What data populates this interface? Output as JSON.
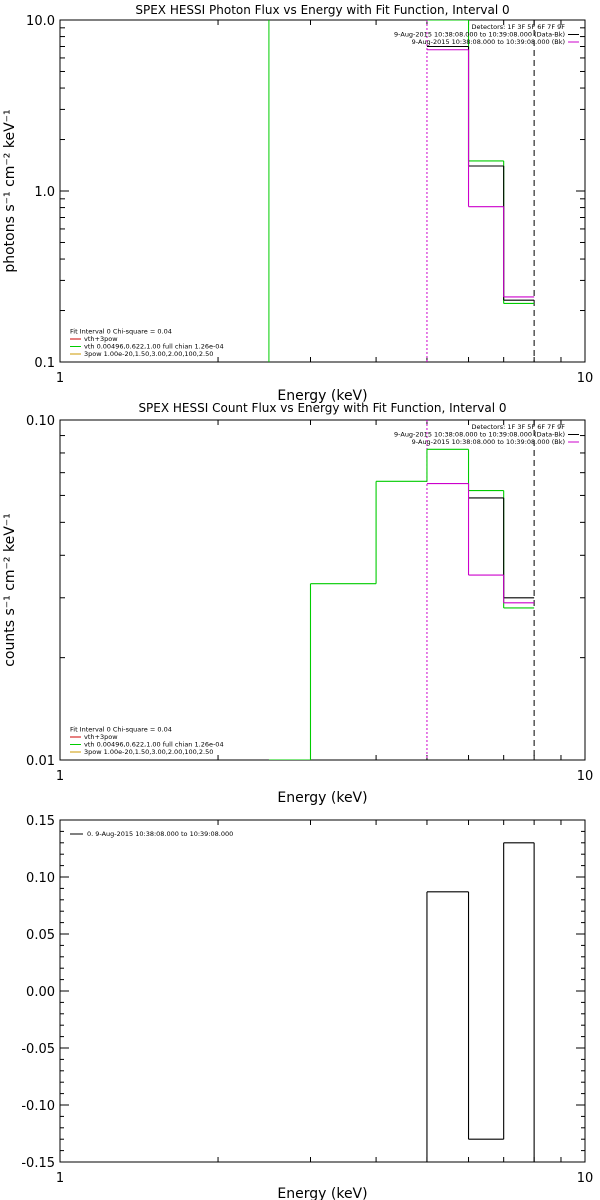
{
  "chart_data": [
    {
      "type": "line",
      "title": "SPEX HESSI Photon Flux vs Energy with Fit Function, Interval 0",
      "xlabel": "Energy (keV)",
      "ylabel": "photons s⁻¹ cm⁻² keV⁻¹",
      "xscale": "log",
      "yscale": "log",
      "xlim": [
        1,
        10
      ],
      "ylim": [
        0.1,
        10
      ],
      "x_tick_labels": [
        "1",
        "10"
      ],
      "y_ticks": [
        0.1,
        1.0,
        10.0
      ],
      "y_tick_labels": [
        "0.1",
        "1.0",
        "10.0"
      ],
      "legend_top_right": [
        {
          "text": "Detectors: 1F 3F 5F 6F 7F 9F",
          "color": ""
        },
        {
          "text": "9-Aug-2015 10:38:08.000 to 10:39:08.000 (Data-Bk)",
          "color": "#000000"
        },
        {
          "text": "9-Aug-2015 10:38:08.000 to 10:39:08.000 (Bk)",
          "color": "#cc00cc"
        }
      ],
      "legend_bottom_left": [
        {
          "text": "Fit Interval 0   Chi-square = 0.04",
          "color": ""
        },
        {
          "text": "vth+3pow",
          "color": "#cc0000"
        },
        {
          "text": "vth 0.00496,0.622,1.00  full chian 1.26e-04",
          "color": "#00cc00"
        },
        {
          "text": "3pow 1.00e-20,1.50,3.00,2.00,100,2.50",
          "color": "#cc9900"
        }
      ],
      "vlines": [
        {
          "x": 2.5,
          "color": "#00cc00",
          "style": "solid"
        },
        {
          "x": 5.0,
          "color": "#cc00cc",
          "style": "dotted"
        },
        {
          "x": 8.0,
          "color": "#000000",
          "style": "dashed"
        }
      ],
      "series": [
        {
          "color": "#00cc00",
          "bins": [
            [
              5.0,
              6.0,
              10.0
            ],
            [
              6.0,
              7.0,
              1.5
            ],
            [
              7.0,
              8.0,
              0.22
            ]
          ]
        },
        {
          "color": "#000000",
          "bins": [
            [
              5.0,
              6.0,
              7.0
            ],
            [
              6.0,
              7.0,
              1.4
            ],
            [
              7.0,
              8.0,
              0.23
            ]
          ]
        },
        {
          "color": "#cc00cc",
          "bins": [
            [
              5.0,
              6.0,
              6.7
            ],
            [
              6.0,
              7.0,
              0.81
            ],
            [
              7.0,
              8.0,
              0.24
            ]
          ]
        }
      ]
    },
    {
      "type": "line",
      "title": "SPEX HESSI Count Flux vs Energy with Fit Function, Interval 0",
      "xlabel": "Energy (keV)",
      "ylabel": "counts s⁻¹ cm⁻² keV⁻¹",
      "xscale": "log",
      "yscale": "log",
      "xlim": [
        1,
        10
      ],
      "ylim": [
        0.01,
        0.1
      ],
      "x_tick_labels": [
        "1",
        "10"
      ],
      "y_ticks": [
        0.01,
        0.1
      ],
      "y_tick_labels": [
        "0.01",
        "0.10"
      ],
      "legend_top_right": [
        {
          "text": "Detectors: 1F 3F 5F 6F 7F 9F",
          "color": ""
        },
        {
          "text": "9-Aug-2015 10:38:08.000 to 10:39:08.000 (Data-Bk)",
          "color": "#000000"
        },
        {
          "text": "9-Aug-2015 10:38:08.000 to 10:39:08.000 (Bk)",
          "color": "#cc00cc"
        }
      ],
      "legend_bottom_left": [
        {
          "text": "Fit Interval 0   Chi-square = 0.04",
          "color": ""
        },
        {
          "text": "vth+3pow",
          "color": "#cc0000"
        },
        {
          "text": "vth 0.00496,0.622,1.00  full chian 1.26e-04",
          "color": "#00cc00"
        },
        {
          "text": "3pow 1.00e-20,1.50,3.00,2.00,100,2.50",
          "color": "#cc9900"
        }
      ],
      "vlines": [
        {
          "x": 5.0,
          "color": "#cc00cc",
          "style": "dotted"
        },
        {
          "x": 8.0,
          "color": "#000000",
          "style": "dashed"
        }
      ],
      "series": [
        {
          "color": "#00cc00",
          "bins": [
            [
              2.5,
              3.0,
              0.0
            ],
            [
              3.0,
              4.0,
              0.033
            ],
            [
              4.0,
              5.0,
              0.066
            ],
            [
              5.0,
              6.0,
              0.082
            ],
            [
              6.0,
              7.0,
              0.062
            ],
            [
              7.0,
              8.0,
              0.028
            ]
          ]
        },
        {
          "color": "#000000",
          "bins": [
            [
              6.0,
              7.0,
              0.059
            ],
            [
              7.0,
              8.0,
              0.03
            ]
          ]
        },
        {
          "color": "#cc00cc",
          "bins": [
            [
              5.0,
              6.0,
              0.065
            ],
            [
              6.0,
              7.0,
              0.035
            ],
            [
              7.0,
              8.0,
              0.029
            ]
          ]
        }
      ]
    },
    {
      "type": "line",
      "title": "",
      "xlabel": "Energy (keV)",
      "ylabel": "",
      "xscale": "log",
      "yscale": "linear",
      "xlim": [
        1,
        10
      ],
      "ylim": [
        -0.15,
        0.15
      ],
      "x_tick_labels": [
        "1",
        "10"
      ],
      "y_ticks": [
        0.15,
        0.1,
        0.05,
        0.0,
        -0.05,
        -0.1,
        -0.15
      ],
      "y_tick_labels": [
        "0.15",
        "0.10",
        "0.05",
        "0.00",
        "-0.05",
        "-0.10",
        "-0.15"
      ],
      "legend_top_left": [
        {
          "text": "0. 9-Aug-2015 10:38:08.000 to 10:39:08.000",
          "color": "#000000"
        }
      ],
      "vlines": [],
      "series": [
        {
          "color": "#000000",
          "bins": [
            [
              5.0,
              6.0,
              0.087
            ],
            [
              6.0,
              7.0,
              -0.13
            ],
            [
              7.0,
              8.0,
              0.13
            ]
          ]
        }
      ]
    }
  ]
}
